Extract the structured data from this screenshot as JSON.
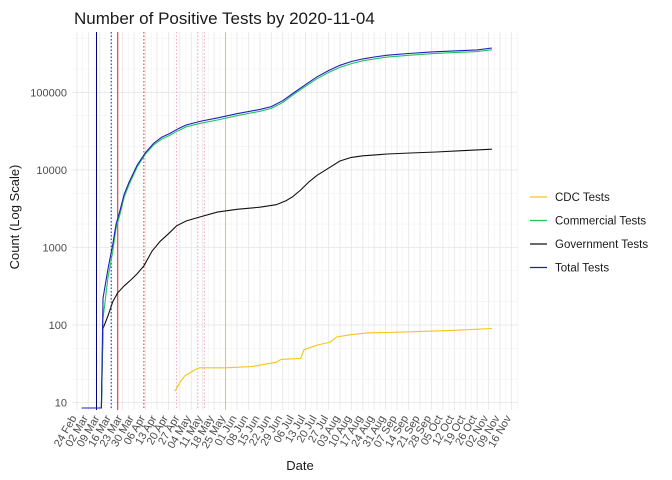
{
  "chart_data": {
    "type": "line",
    "title": "Number of Positive Tests by  2020-11-04",
    "xlabel": "Date",
    "ylabel": "Count (Log Scale)",
    "y_scale": "log10",
    "ylim": [
      8,
      600000
    ],
    "xlim": [
      "2020-02-21",
      "2020-11-20"
    ],
    "y_ticks": [
      {
        "value": 10,
        "label": "10"
      },
      {
        "value": 100,
        "label": "100"
      },
      {
        "value": 1000,
        "label": "1000"
      },
      {
        "value": 10000,
        "label": "10000"
      },
      {
        "value": 100000,
        "label": "100000"
      }
    ],
    "x_ticks": [
      {
        "date": "2020-02-24",
        "label": "24 Feb"
      },
      {
        "date": "2020-03-02",
        "label": "02 Mar"
      },
      {
        "date": "2020-03-09",
        "label": "09 Mar"
      },
      {
        "date": "2020-03-16",
        "label": "16 Mar"
      },
      {
        "date": "2020-03-23",
        "label": "23 Mar"
      },
      {
        "date": "2020-03-30",
        "label": "30 Mar"
      },
      {
        "date": "2020-04-06",
        "label": "06 Apr"
      },
      {
        "date": "2020-04-13",
        "label": "13 Apr"
      },
      {
        "date": "2020-04-20",
        "label": "20 Apr"
      },
      {
        "date": "2020-04-27",
        "label": "27 Apr"
      },
      {
        "date": "2020-05-04",
        "label": "04 May"
      },
      {
        "date": "2020-05-11",
        "label": "11 May"
      },
      {
        "date": "2020-05-18",
        "label": "18 May"
      },
      {
        "date": "2020-05-25",
        "label": "25 May"
      },
      {
        "date": "2020-06-01",
        "label": "01 Jun"
      },
      {
        "date": "2020-06-08",
        "label": "08 Jun"
      },
      {
        "date": "2020-06-15",
        "label": "15 Jun"
      },
      {
        "date": "2020-06-22",
        "label": "22 Jun"
      },
      {
        "date": "2020-06-29",
        "label": "29 Jun"
      },
      {
        "date": "2020-07-06",
        "label": "06 Jul"
      },
      {
        "date": "2020-07-13",
        "label": "13 Jul"
      },
      {
        "date": "2020-07-20",
        "label": "20 Jul"
      },
      {
        "date": "2020-07-27",
        "label": "27 Jul"
      },
      {
        "date": "2020-08-03",
        "label": "03 Aug"
      },
      {
        "date": "2020-08-10",
        "label": "10 Aug"
      },
      {
        "date": "2020-08-17",
        "label": "17 Aug"
      },
      {
        "date": "2020-08-24",
        "label": "24 Aug"
      },
      {
        "date": "2020-08-31",
        "label": "31 Aug"
      },
      {
        "date": "2020-09-07",
        "label": "07 Sep"
      },
      {
        "date": "2020-09-14",
        "label": "14 Sep"
      },
      {
        "date": "2020-09-21",
        "label": "21 Sep"
      },
      {
        "date": "2020-09-28",
        "label": "28 Sep"
      },
      {
        "date": "2020-10-05",
        "label": "05 Oct"
      },
      {
        "date": "2020-10-12",
        "label": "12 Oct"
      },
      {
        "date": "2020-10-19",
        "label": "19 Oct"
      },
      {
        "date": "2020-10-26",
        "label": "26 Oct"
      },
      {
        "date": "2020-11-02",
        "label": "02 Nov"
      },
      {
        "date": "2020-11-09",
        "label": "09 Nov"
      },
      {
        "date": "2020-11-16",
        "label": "16 Nov"
      }
    ],
    "grid": true,
    "legend_position": "right",
    "series": [
      {
        "name": "CDC Tests",
        "color": "#f5c518",
        "points": [
          [
            "2020-04-24",
            14
          ],
          [
            "2020-04-27",
            18
          ],
          [
            "2020-04-30",
            22
          ],
          [
            "2020-05-03",
            24
          ],
          [
            "2020-05-07",
            27
          ],
          [
            "2020-05-09",
            28
          ],
          [
            "2020-05-25",
            28
          ],
          [
            "2020-06-10",
            29
          ],
          [
            "2020-06-25",
            33
          ],
          [
            "2020-06-28",
            36
          ],
          [
            "2020-07-10",
            37
          ],
          [
            "2020-07-12",
            48
          ],
          [
            "2020-07-20",
            55
          ],
          [
            "2020-07-28",
            60
          ],
          [
            "2020-08-01",
            70
          ],
          [
            "2020-08-10",
            75
          ],
          [
            "2020-08-20",
            79
          ],
          [
            "2020-09-01",
            80
          ],
          [
            "2020-09-20",
            82
          ],
          [
            "2020-10-10",
            85
          ],
          [
            "2020-10-25",
            88
          ],
          [
            "2020-11-04",
            90
          ]
        ]
      },
      {
        "name": "Commercial Tests",
        "color": "#22c55e",
        "points": [
          [
            "2020-02-27",
            8.5
          ],
          [
            "2020-03-10",
            8.5
          ],
          [
            "2020-03-11",
            120
          ],
          [
            "2020-03-14",
            400
          ],
          [
            "2020-03-17",
            900
          ],
          [
            "2020-03-19",
            1800
          ],
          [
            "2020-03-21",
            2500
          ],
          [
            "2020-03-24",
            4500
          ],
          [
            "2020-03-27",
            6500
          ],
          [
            "2020-04-01",
            11000
          ],
          [
            "2020-04-06",
            16000
          ],
          [
            "2020-04-11",
            21000
          ],
          [
            "2020-04-16",
            25000
          ],
          [
            "2020-04-21",
            28000
          ],
          [
            "2020-04-26",
            32000
          ],
          [
            "2020-05-01",
            36000
          ],
          [
            "2020-05-10",
            40000
          ],
          [
            "2020-05-20",
            44000
          ],
          [
            "2020-06-01",
            50000
          ],
          [
            "2020-06-15",
            57000
          ],
          [
            "2020-06-22",
            62000
          ],
          [
            "2020-06-29",
            74000
          ],
          [
            "2020-07-06",
            95000
          ],
          [
            "2020-07-13",
            120000
          ],
          [
            "2020-07-20",
            150000
          ],
          [
            "2020-07-27",
            180000
          ],
          [
            "2020-08-03",
            210000
          ],
          [
            "2020-08-10",
            235000
          ],
          [
            "2020-08-17",
            255000
          ],
          [
            "2020-08-24",
            270000
          ],
          [
            "2020-09-01",
            285000
          ],
          [
            "2020-09-14",
            300000
          ],
          [
            "2020-09-28",
            315000
          ],
          [
            "2020-10-12",
            325000
          ],
          [
            "2020-10-26",
            335000
          ],
          [
            "2020-11-04",
            355000
          ]
        ]
      },
      {
        "name": "Government Tests",
        "color": "#111111",
        "points": [
          [
            "2020-02-27",
            8.5
          ],
          [
            "2020-03-10",
            8.5
          ],
          [
            "2020-03-11",
            90
          ],
          [
            "2020-03-14",
            130
          ],
          [
            "2020-03-17",
            200
          ],
          [
            "2020-03-20",
            260
          ],
          [
            "2020-03-24",
            320
          ],
          [
            "2020-03-28",
            380
          ],
          [
            "2020-04-01",
            460
          ],
          [
            "2020-04-05",
            580
          ],
          [
            "2020-04-10",
            900
          ],
          [
            "2020-04-15",
            1200
          ],
          [
            "2020-04-20",
            1500
          ],
          [
            "2020-04-25",
            1900
          ],
          [
            "2020-05-01",
            2200
          ],
          [
            "2020-05-10",
            2500
          ],
          [
            "2020-05-20",
            2850
          ],
          [
            "2020-06-01",
            3100
          ],
          [
            "2020-06-15",
            3300
          ],
          [
            "2020-06-25",
            3550
          ],
          [
            "2020-07-01",
            4000
          ],
          [
            "2020-07-05",
            4500
          ],
          [
            "2020-07-10",
            5500
          ],
          [
            "2020-07-15",
            7000
          ],
          [
            "2020-07-20",
            8500
          ],
          [
            "2020-07-27",
            10500
          ],
          [
            "2020-08-03",
            13000
          ],
          [
            "2020-08-10",
            14500
          ],
          [
            "2020-08-17",
            15200
          ],
          [
            "2020-09-01",
            16000
          ],
          [
            "2020-09-15",
            16500
          ],
          [
            "2020-10-01",
            17000
          ],
          [
            "2020-10-15",
            17600
          ],
          [
            "2020-11-04",
            18500
          ]
        ]
      },
      {
        "name": "Total Tests",
        "color": "#1f1fbf",
        "points": [
          [
            "2020-02-27",
            8.5
          ],
          [
            "2020-03-10",
            8.5
          ],
          [
            "2020-03-11",
            220
          ],
          [
            "2020-03-14",
            520
          ],
          [
            "2020-03-17",
            1100
          ],
          [
            "2020-03-19",
            2000
          ],
          [
            "2020-03-21",
            2800
          ],
          [
            "2020-03-24",
            4900
          ],
          [
            "2020-03-27",
            7000
          ],
          [
            "2020-04-01",
            11600
          ],
          [
            "2020-04-06",
            16700
          ],
          [
            "2020-04-11",
            22000
          ],
          [
            "2020-04-16",
            26500
          ],
          [
            "2020-04-21",
            29500
          ],
          [
            "2020-04-26",
            34000
          ],
          [
            "2020-05-01",
            38000
          ],
          [
            "2020-05-10",
            42500
          ],
          [
            "2020-05-20",
            46800
          ],
          [
            "2020-06-01",
            53100
          ],
          [
            "2020-06-15",
            60300
          ],
          [
            "2020-06-22",
            65500
          ],
          [
            "2020-06-29",
            78000
          ],
          [
            "2020-07-06",
            99500
          ],
          [
            "2020-07-13",
            126000
          ],
          [
            "2020-07-20",
            158500
          ],
          [
            "2020-07-27",
            190500
          ],
          [
            "2020-08-03",
            223000
          ],
          [
            "2020-08-10",
            249500
          ],
          [
            "2020-08-17",
            270200
          ],
          [
            "2020-08-24",
            285500
          ],
          [
            "2020-09-01",
            301000
          ],
          [
            "2020-09-14",
            316500
          ],
          [
            "2020-09-28",
            332000
          ],
          [
            "2020-10-12",
            342600
          ],
          [
            "2020-10-26",
            352600
          ],
          [
            "2020-11-04",
            373500
          ]
        ]
      }
    ],
    "vertical_markers": [
      {
        "date": "2020-03-07",
        "color": "#000080",
        "style": "solid"
      },
      {
        "date": "2020-03-16",
        "color": "#1f1fbf",
        "style": "dotted"
      },
      {
        "date": "2020-03-20",
        "color": "#d62728",
        "style": "solid"
      },
      {
        "date": "2020-04-05",
        "color": "#d62728",
        "style": "dotted"
      },
      {
        "date": "2020-04-25",
        "color": "#f4a6c6",
        "style": "dotted"
      },
      {
        "date": "2020-05-08",
        "color": "#f4a6c6",
        "style": "dotted"
      },
      {
        "date": "2020-05-12",
        "color": "#f4a6c6",
        "style": "dotted"
      },
      {
        "date": "2020-05-25",
        "color": "#f5c518",
        "style": "solid"
      }
    ]
  }
}
